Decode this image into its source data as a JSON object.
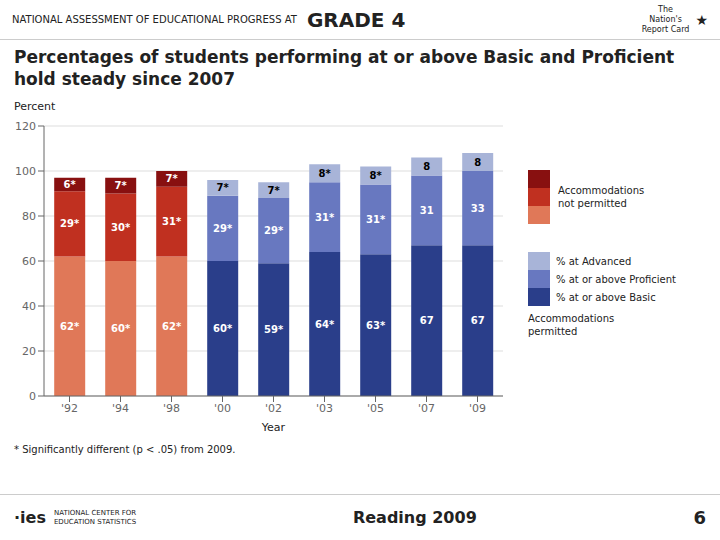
{
  "chart_data": {
    "type": "bar",
    "stacked": true,
    "title": "Percentages of students performing at or above Basic and Proficient hold steady since 2007",
    "xlabel": "Year",
    "ylabel": "Percent",
    "categories": [
      "'92",
      "'94",
      "'98",
      "'00",
      "'02",
      "'03",
      "'05",
      "'07",
      "'09"
    ],
    "series": [
      {
        "name": "% at or above Basic",
        "colors": [
          "#E07858",
          "#E07858",
          "#E07858",
          "#2A3E8A",
          "#2A3E8A",
          "#2A3E8A",
          "#2A3E8A",
          "#2A3E8A",
          "#2A3E8A"
        ],
        "values": [
          62,
          60,
          62,
          60,
          59,
          64,
          63,
          67,
          67
        ],
        "value_labels": [
          "62*",
          "60*",
          "62*",
          "60*",
          "59*",
          "64*",
          "63*",
          "67",
          "67"
        ]
      },
      {
        "name": "% at or above Proficient",
        "colors": [
          "#C03020",
          "#C03020",
          "#C03020",
          "#6878C0",
          "#6878C0",
          "#6878C0",
          "#6878C0",
          "#6878C0",
          "#6878C0"
        ],
        "values": [
          29,
          30,
          31,
          29,
          29,
          31,
          31,
          31,
          33
        ],
        "value_labels": [
          "29*",
          "30*",
          "31*",
          "29*",
          "29*",
          "31*",
          "31*",
          "31",
          "33"
        ]
      },
      {
        "name": "% at Advanced",
        "colors": [
          "#881010",
          "#881010",
          "#881010",
          "#A8B4D8",
          "#A8B4D8",
          "#A8B4D8",
          "#A8B4D8",
          "#A8B4D8",
          "#A8B4D8"
        ],
        "values": [
          6,
          7,
          7,
          7,
          7,
          8,
          8,
          8,
          8
        ],
        "value_labels": [
          "6*",
          "7*",
          "7*",
          "7*",
          "7*",
          "8*",
          "8*",
          "8",
          "8"
        ]
      }
    ],
    "ylim": [
      0,
      120
    ],
    "yticks": [
      0,
      20,
      40,
      60,
      80,
      100,
      120
    ],
    "grid": true,
    "data_labels": true,
    "annotations": [
      "NATIONAL ASSESSMENT OF EDUCATIONAL PROGRESS AT",
      "GRADE 4",
      "★",
      "The\nNation's\nReport Card",
      "* Significantly different (p < .05) from 2009.",
      "Accommodations\nnot permitted",
      "Accommodations\npermitted",
      "·ies",
      "NATIONAL CENTER FOR\nEDUCATION STATISTICS",
      "Reading 2009",
      "6"
    ]
  }
}
